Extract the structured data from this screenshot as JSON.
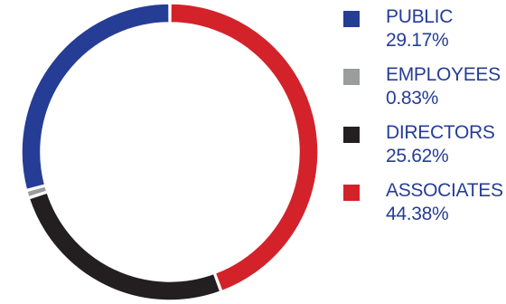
{
  "chart_data": {
    "type": "pie",
    "title": "",
    "xlabel": "",
    "ylabel": "",
    "categories": [
      "PUBLIC",
      "EMPLOYEES",
      "DIRECTORS",
      "ASSOCIATES"
    ],
    "values": [
      29.17,
      0.83,
      25.62,
      44.38
    ],
    "value_labels": [
      "29.17%",
      "0.83%",
      "25.62%",
      "44.38%"
    ],
    "colors": [
      "#263d96",
      "#9b9c9e",
      "#231f20",
      "#d3222a"
    ],
    "donut": true,
    "legend_position": "right",
    "grid": false
  }
}
